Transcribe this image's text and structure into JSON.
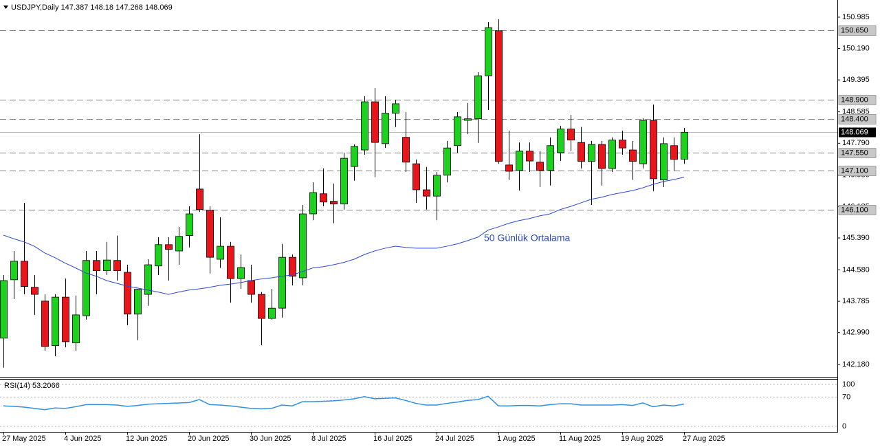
{
  "chart_data": {
    "type": "candlestick",
    "title": "USDJPY,Daily",
    "categories": [
      "27 May 2025",
      null,
      null,
      null,
      null,
      null,
      "4 Jun 2025",
      null,
      null,
      null,
      null,
      null,
      "12 Jun 2025",
      null,
      null,
      null,
      null,
      null,
      "20 Jun 2025",
      null,
      null,
      null,
      null,
      null,
      "30 Jun 2025",
      null,
      null,
      null,
      null,
      null,
      "8 Jul 2025",
      null,
      null,
      null,
      null,
      null,
      "16 Jul 2025",
      null,
      null,
      null,
      null,
      null,
      "24 Jul 2025",
      null,
      null,
      null,
      null,
      null,
      "1 Aug 2025",
      null,
      null,
      null,
      null,
      null,
      "11 Aug 2025",
      null,
      null,
      null,
      null,
      null,
      "19 Aug 2025",
      null,
      null,
      null,
      null,
      null,
      "27 Aug 2025"
    ],
    "open": [
      142.85,
      144.33,
      144.8,
      144.14,
      143.79,
      142.66,
      143.89,
      142.73,
      143.42,
      144.82,
      144.56,
      144.82,
      144.52,
      143.46,
      143.96,
      144.68,
      145.22,
      145.06,
      145.45,
      146.63,
      146.09,
      144.85,
      145.18,
      144.36,
      144.31,
      143.96,
      143.35,
      143.61,
      144.9,
      144.38,
      146.0,
      146.51,
      146.32,
      146.25,
      147.2,
      147.62,
      148.84,
      147.78,
      148.55,
      147.94,
      147.27,
      146.61,
      146.45,
      146.98,
      147.73,
      148.37,
      148.41,
      149.5,
      150.64,
      147.24,
      147.1,
      147.59,
      147.31,
      147.1,
      147.55,
      148.15,
      147.81,
      147.33,
      147.76,
      147.15,
      147.87,
      147.62,
      147.27,
      148.37,
      146.86,
      147.73,
      147.387
    ],
    "high": [
      144.45,
      145.06,
      146.28,
      144.45,
      143.96,
      143.96,
      144.36,
      143.93,
      145.06,
      145.06,
      145.29,
      145.45,
      144.71,
      144.1,
      144.85,
      145.41,
      145.41,
      145.67,
      146.19,
      148.02,
      146.19,
      145.91,
      145.29,
      144.97,
      144.71,
      144.02,
      144.1,
      145.24,
      144.97,
      146.23,
      146.8,
      147.15,
      146.77,
      147.55,
      147.76,
      148.98,
      149.19,
      148.98,
      148.89,
      148.58,
      147.38,
      147.19,
      147.06,
      147.85,
      148.58,
      148.81,
      149.59,
      150.86,
      150.93,
      148.11,
      147.81,
      147.81,
      147.59,
      147.94,
      148.23,
      148.51,
      148.2,
      147.85,
      147.85,
      147.94,
      148.11,
      147.85,
      148.42,
      148.77,
      147.94,
      147.94,
      148.18
    ],
    "low": [
      142.1,
      143.84,
      143.96,
      143.44,
      142.53,
      142.39,
      142.62,
      142.53,
      143.32,
      143.96,
      144.45,
      144.31,
      143.18,
      142.8,
      143.67,
      144.45,
      144.31,
      144.71,
      145.15,
      146.05,
      144.49,
      144.63,
      143.75,
      144.1,
      143.75,
      142.67,
      143.32,
      143.37,
      144.19,
      144.19,
      145.84,
      146.19,
      145.76,
      146.11,
      146.84,
      147.5,
      146.93,
      147.67,
      148.2,
      147.06,
      146.28,
      146.11,
      145.84,
      146.8,
      147.55,
      148.02,
      147.8,
      148.63,
      147.27,
      146.86,
      146.59,
      147.06,
      146.68,
      146.72,
      147.34,
      147.59,
      147.15,
      146.23,
      146.72,
      147.06,
      147.5,
      146.86,
      147.15,
      146.58,
      146.68,
      147.1,
      147.268
    ],
    "close": [
      144.31,
      144.8,
      144.16,
      143.96,
      142.64,
      143.89,
      142.76,
      143.44,
      144.82,
      144.56,
      144.83,
      144.56,
      143.46,
      144.09,
      144.71,
      145.22,
      145.1,
      145.43,
      146.0,
      146.11,
      144.9,
      145.18,
      144.36,
      144.64,
      143.96,
      143.35,
      143.61,
      144.9,
      144.42,
      146.0,
      146.54,
      146.3,
      146.25,
      147.41,
      147.71,
      148.84,
      147.81,
      148.55,
      148.79,
      147.31,
      146.61,
      146.45,
      146.98,
      147.67,
      148.46,
      148.41,
      149.5,
      150.72,
      147.33,
      147.08,
      147.59,
      147.34,
      147.1,
      147.73,
      148.15,
      147.87,
      147.33,
      147.76,
      147.15,
      147.87,
      147.67,
      147.33,
      148.37,
      146.89,
      147.78,
      147.38,
      148.069
    ],
    "up_color": "#1fd11f",
    "down_color": "#e8161b",
    "ylim": [
      141.87,
      151.42
    ],
    "yticks": [
      {
        "value": 150.985,
        "label": "150.985"
      },
      {
        "value": 150.19,
        "label": "150.190"
      },
      {
        "value": 149.395,
        "label": "149.395"
      },
      {
        "value": 148.585,
        "label": "148.585"
      },
      {
        "value": 147.79,
        "label": "147.790"
      },
      {
        "value": 146.98,
        "label": "146.980"
      },
      {
        "value": 146.185,
        "label": "146.185"
      },
      {
        "value": 145.39,
        "label": "145.390"
      },
      {
        "value": 144.58,
        "label": "144.580"
      },
      {
        "value": 143.785,
        "label": "143.785"
      },
      {
        "value": 142.99,
        "label": "142.990"
      },
      {
        "value": 142.18,
        "label": "142.180"
      }
    ],
    "levels": [
      {
        "value": 150.65,
        "label": "150.650"
      },
      {
        "value": 148.9,
        "label": "148.900"
      },
      {
        "value": 148.4,
        "label": "148.400"
      },
      {
        "value": 147.55,
        "label": "147.550"
      },
      {
        "value": 147.1,
        "label": "147.100"
      },
      {
        "value": 146.1,
        "label": "146.100"
      }
    ],
    "ma": {
      "name": "50 Günlük Ortalama",
      "color": "#2a47d6",
      "values": [
        145.46,
        145.37,
        145.29,
        145.18,
        145.01,
        144.89,
        144.75,
        144.63,
        144.5,
        144.42,
        144.31,
        144.24,
        144.17,
        144.12,
        144.07,
        144.02,
        143.96,
        144.02,
        144.07,
        144.1,
        144.14,
        144.19,
        144.22,
        144.26,
        144.31,
        144.35,
        144.38,
        144.42,
        144.45,
        144.54,
        144.63,
        144.66,
        144.71,
        144.77,
        144.85,
        144.97,
        145.06,
        145.13,
        145.18,
        145.15,
        145.13,
        145.13,
        145.13,
        145.18,
        145.24,
        145.32,
        145.41,
        145.59,
        145.67,
        145.76,
        145.83,
        145.88,
        145.95,
        146.0,
        146.11,
        146.19,
        146.28,
        146.37,
        146.42,
        146.49,
        146.54,
        146.59,
        146.66,
        146.75,
        146.82,
        146.87,
        146.93
      ]
    },
    "rsi": {
      "name": "RSI(14)",
      "color": "#2f8fe0",
      "ylim": [
        -13,
        115
      ],
      "yticks": [
        100,
        70,
        0
      ],
      "values": [
        49,
        48,
        46,
        43,
        40,
        44,
        43,
        47,
        52,
        52,
        52,
        51,
        48,
        50,
        53,
        54,
        55,
        56,
        57,
        64,
        52,
        51,
        49,
        46,
        43,
        42,
        43,
        51,
        49,
        59,
        59,
        60,
        61,
        63,
        66,
        71,
        66,
        67,
        68,
        62,
        55,
        51,
        51,
        55,
        58,
        62,
        64,
        72,
        49,
        49,
        50,
        50,
        49,
        52,
        54,
        54,
        51,
        51,
        51,
        51,
        52,
        50,
        56,
        47,
        51,
        49,
        53.2066
      ]
    }
  }
}
